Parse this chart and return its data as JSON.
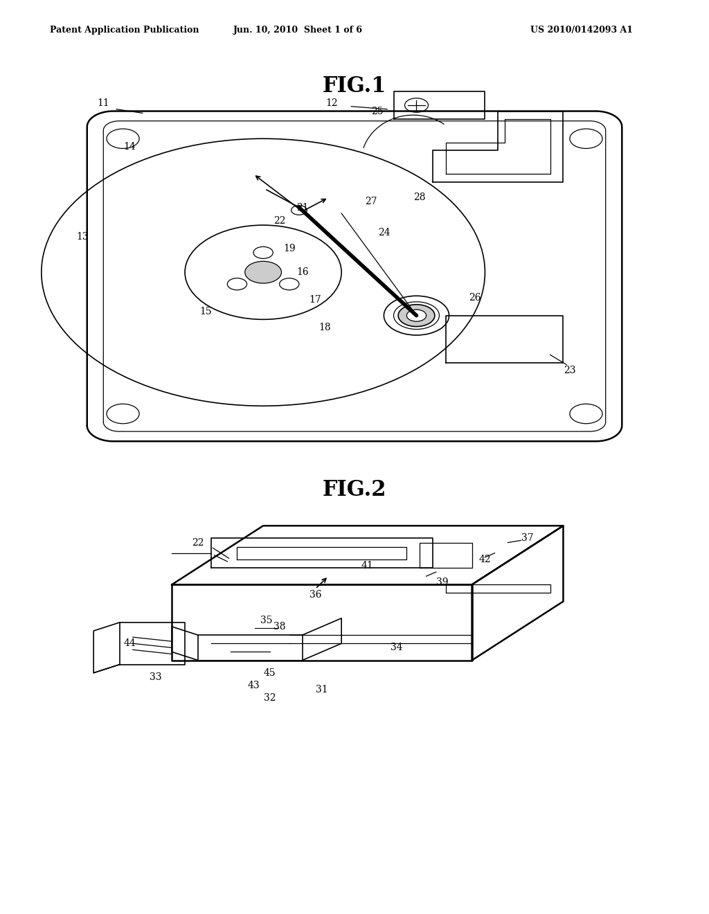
{
  "background_color": "#ffffff",
  "header_left": "Patent Application Publication",
  "header_mid": "Jun. 10, 2010  Sheet 1 of 6",
  "header_right": "US 2010/0142093 A1",
  "fig1_title": "FIG.1",
  "fig2_title": "FIG.2",
  "line_color": "#000000",
  "label_color": "#000000"
}
